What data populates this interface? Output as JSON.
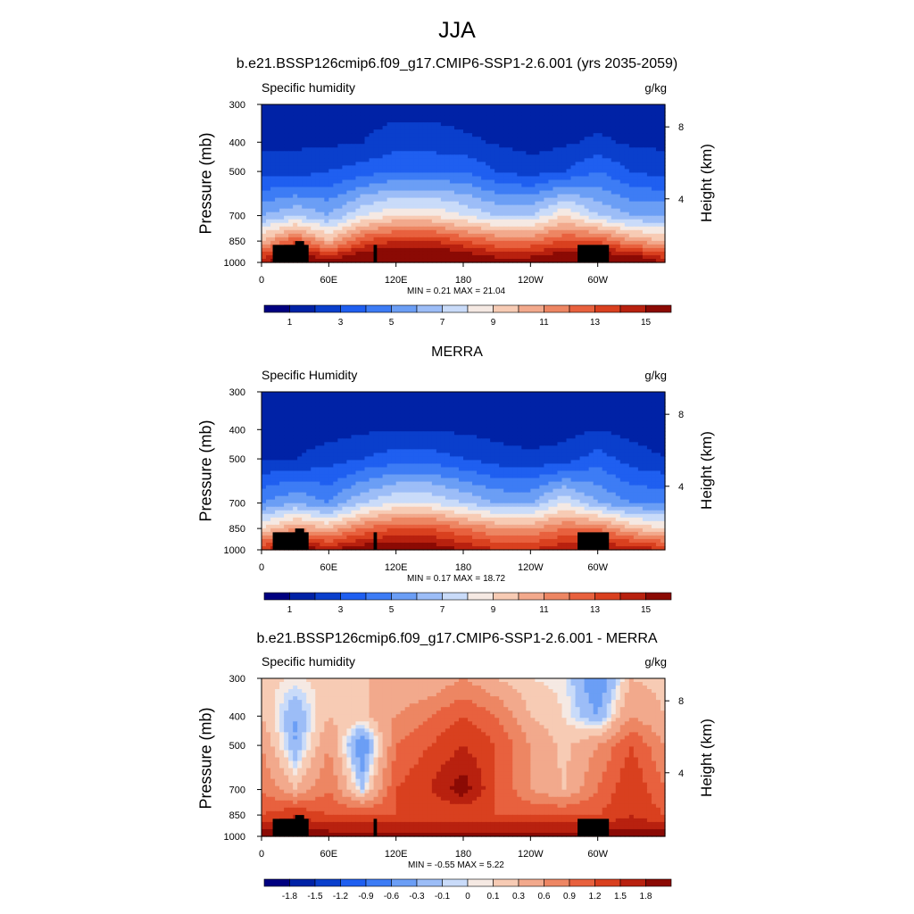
{
  "figure": {
    "title": "JJA"
  },
  "panels": [
    {
      "title": "b.e21.BSSP126cmip6.f09_g17.CMIP6-SSP1-2.6.001 (yrs 2035-2059)",
      "left_label": "Specific humidity",
      "right_label": "g/kg",
      "ylabel": "Pressure (mb)",
      "right_axis_label": "Height (km)",
      "yticks": [
        "300",
        "400",
        "500",
        "700",
        "850",
        "1000"
      ],
      "right_ticks": [
        "8",
        "4"
      ],
      "xticks": [
        "0",
        "60E",
        "120E",
        "180",
        "120W",
        "60W"
      ],
      "min_label": "MIN =",
      "min_value": "0.21",
      "max_label": "MAX =",
      "max_value": "21.04",
      "colorbar_labels": [
        "1",
        "3",
        "5",
        "7",
        "9",
        "11",
        "13",
        "15"
      ]
    },
    {
      "title": "MERRA",
      "left_label": "Specific Humidity",
      "right_label": "g/kg",
      "ylabel": "Pressure (mb)",
      "right_axis_label": "Height (km)",
      "yticks": [
        "300",
        "400",
        "500",
        "700",
        "850",
        "1000"
      ],
      "right_ticks": [
        "8",
        "4"
      ],
      "xticks": [
        "0",
        "60E",
        "120E",
        "180",
        "120W",
        "60W"
      ],
      "min_label": "MIN =",
      "min_value": "0.17",
      "max_label": "MAX =",
      "max_value": "18.72",
      "colorbar_labels": [
        "1",
        "3",
        "5",
        "7",
        "9",
        "11",
        "13",
        "15"
      ]
    },
    {
      "title": "b.e21.BSSP126cmip6.f09_g17.CMIP6-SSP1-2.6.001 - MERRA",
      "left_label": "Specific humidity",
      "right_label": "g/kg",
      "ylabel": "Pressure (mb)",
      "right_axis_label": "Height (km)",
      "yticks": [
        "300",
        "400",
        "500",
        "700",
        "850",
        "1000"
      ],
      "right_ticks": [
        "8",
        "4"
      ],
      "xticks": [
        "0",
        "60E",
        "120E",
        "180",
        "120W",
        "60W"
      ],
      "min_label": "MIN =",
      "min_value": "-0.55",
      "max_label": "MAX =",
      "max_value": "5.22",
      "colorbar_labels": [
        "-1.8",
        "-1.5",
        "-1.2",
        "-0.9",
        "-0.6",
        "-0.3",
        "-0.1",
        "0",
        "0.1",
        "0.3",
        "0.6",
        "0.9",
        "1.2",
        "1.5",
        "1.8"
      ]
    }
  ],
  "chart_data": [
    {
      "type": "heatmap",
      "title": "b.e21.BSSP126cmip6.f09_g17.CMIP6-SSP1-2.6.001 (yrs 2035-2059)",
      "variable": "Specific humidity",
      "units": "g/kg",
      "xlabel": "",
      "ylabel": "Pressure (mb)",
      "xlim": [
        0,
        360
      ],
      "ylim_pressure": [
        1000,
        300
      ],
      "y_scale": "log",
      "x_ticks": [
        0,
        60,
        120,
        180,
        240,
        300
      ],
      "y_ticks": [
        300,
        400,
        500,
        700,
        850,
        1000
      ],
      "right_axis": {
        "label": "Height (km)",
        "ticks": [
          8,
          4
        ]
      },
      "min": 0.21,
      "max": 21.04,
      "levels": [
        0,
        1,
        2,
        3,
        4,
        5,
        6,
        7,
        8,
        9,
        10,
        11,
        12,
        13,
        14,
        15,
        16
      ],
      "colors": [
        "#000080",
        "#0022a6",
        "#0a3fcc",
        "#1f5ff0",
        "#3d7cf5",
        "#6b9ef5",
        "#9cbdf7",
        "#c9dbf9",
        "#f5e9e3",
        "#f7cbb4",
        "#f2a98c",
        "#ed8663",
        "#e8613e",
        "#d9401f",
        "#b8210f",
        "#8b0a04"
      ],
      "sample_profile_lon": [
        0,
        30,
        60,
        90,
        120,
        150,
        180,
        210,
        240,
        270,
        300,
        330,
        360
      ],
      "sample_profile_p": [
        1000,
        850,
        700,
        500,
        400,
        300
      ],
      "sample_values": [
        [
          14,
          9,
          5,
          1.5,
          0.8,
          0.3
        ],
        [
          16,
          12,
          6,
          1.5,
          0.8,
          0.3
        ],
        [
          15,
          9,
          5,
          2,
          0.8,
          0.4
        ],
        [
          16,
          12,
          7,
          2.5,
          1,
          0.5
        ],
        [
          17,
          13,
          8,
          3,
          1.5,
          0.6
        ],
        [
          17,
          13,
          8,
          3,
          1.5,
          0.6
        ],
        [
          16,
          12,
          7,
          3,
          1.2,
          0.5
        ],
        [
          15,
          11,
          6,
          2,
          0.9,
          0.4
        ],
        [
          15,
          11,
          6,
          1.5,
          0.6,
          0.3
        ],
        [
          16,
          12,
          8,
          2,
          0.8,
          0.3
        ],
        [
          16,
          12,
          6,
          3,
          1.2,
          0.5
        ],
        [
          16,
          10,
          5,
          2,
          0.8,
          0.3
        ],
        [
          14,
          9,
          5,
          1.5,
          0.8,
          0.3
        ]
      ]
    },
    {
      "type": "heatmap",
      "title": "MERRA",
      "variable": "Specific Humidity",
      "units": "g/kg",
      "xlabel": "",
      "ylabel": "Pressure (mb)",
      "xlim": [
        0,
        360
      ],
      "ylim_pressure": [
        1000,
        300
      ],
      "y_scale": "log",
      "x_ticks": [
        0,
        60,
        120,
        180,
        240,
        300
      ],
      "y_ticks": [
        300,
        400,
        500,
        700,
        850,
        1000
      ],
      "right_axis": {
        "label": "Height (km)",
        "ticks": [
          8,
          4
        ]
      },
      "min": 0.17,
      "max": 18.72,
      "levels": [
        0,
        1,
        2,
        3,
        4,
        5,
        6,
        7,
        8,
        9,
        10,
        11,
        12,
        13,
        14,
        15,
        16
      ],
      "colors": [
        "#000080",
        "#0022a6",
        "#0a3fcc",
        "#1f5ff0",
        "#3d7cf5",
        "#6b9ef5",
        "#9cbdf7",
        "#c9dbf9",
        "#f5e9e3",
        "#f7cbb4",
        "#f2a98c",
        "#ed8663",
        "#e8613e",
        "#d9401f",
        "#b8210f",
        "#8b0a04"
      ],
      "sample_profile_lon": [
        0,
        30,
        60,
        90,
        120,
        150,
        180,
        210,
        240,
        270,
        300,
        330,
        360
      ],
      "sample_profile_p": [
        1000,
        850,
        700,
        500,
        400,
        300
      ],
      "sample_values": [
        [
          13,
          8,
          4,
          1,
          0.5,
          0.2
        ],
        [
          15,
          10,
          5,
          1,
          0.5,
          0.2
        ],
        [
          14,
          9,
          4,
          1.5,
          0.6,
          0.3
        ],
        [
          15,
          11,
          6,
          2,
          0.8,
          0.4
        ],
        [
          15,
          12,
          7,
          2.5,
          1,
          0.4
        ],
        [
          15,
          12,
          7,
          2.5,
          1,
          0.4
        ],
        [
          14,
          11,
          6,
          2,
          0.8,
          0.3
        ],
        [
          13,
          10,
          5,
          1.5,
          0.6,
          0.3
        ],
        [
          13,
          10,
          5,
          1.2,
          0.5,
          0.2
        ],
        [
          14,
          11,
          7,
          1.5,
          0.6,
          0.2
        ],
        [
          14,
          11,
          5,
          2.5,
          1,
          0.4
        ],
        [
          14,
          9,
          4,
          1.5,
          0.6,
          0.2
        ],
        [
          13,
          8,
          4,
          1,
          0.5,
          0.2
        ]
      ]
    },
    {
      "type": "heatmap",
      "title": "b.e21.BSSP126cmip6.f09_g17.CMIP6-SSP1-2.6.001 - MERRA",
      "variable": "Specific humidity",
      "units": "g/kg",
      "xlabel": "",
      "ylabel": "Pressure (mb)",
      "xlim": [
        0,
        360
      ],
      "ylim_pressure": [
        1000,
        300
      ],
      "y_scale": "log",
      "x_ticks": [
        0,
        60,
        120,
        180,
        240,
        300
      ],
      "y_ticks": [
        300,
        400,
        500,
        700,
        850,
        1000
      ],
      "right_axis": {
        "label": "Height (km)",
        "ticks": [
          8,
          4
        ]
      },
      "min": -0.55,
      "max": 5.22,
      "levels": [
        -1.8,
        -1.5,
        -1.2,
        -0.9,
        -0.6,
        -0.3,
        -0.1,
        0,
        0.1,
        0.3,
        0.6,
        0.9,
        1.2,
        1.5,
        1.8
      ],
      "colors": [
        "#000080",
        "#0022a6",
        "#0a3fcc",
        "#1f5ff0",
        "#3d7cf5",
        "#6b9ef5",
        "#9cbdf7",
        "#c9dbf9",
        "#f5e9e3",
        "#f7cbb4",
        "#f2a98c",
        "#ed8663",
        "#e8613e",
        "#d9401f",
        "#b8210f",
        "#8b0a04"
      ],
      "sample_profile_lon": [
        0,
        30,
        60,
        90,
        120,
        150,
        180,
        210,
        240,
        270,
        300,
        330,
        360
      ],
      "sample_profile_p": [
        1000,
        850,
        700,
        500,
        400,
        300
      ],
      "sample_values": [
        [
          2,
          1.2,
          0.9,
          0.6,
          0.3,
          0.2
        ],
        [
          2,
          1.5,
          0.3,
          -0.3,
          -0.3,
          0.05
        ],
        [
          2,
          1.2,
          0.9,
          0.6,
          0.3,
          0.2
        ],
        [
          2,
          1.2,
          -0.1,
          -0.6,
          0.2,
          0.3
        ],
        [
          2,
          1.2,
          1.2,
          0.9,
          0.6,
          0.3
        ],
        [
          2,
          1.2,
          1.5,
          1.2,
          0.9,
          0.3
        ],
        [
          2,
          1.2,
          2.0,
          1.5,
          1.2,
          0.6
        ],
        [
          2,
          1.2,
          1.2,
          1.2,
          0.9,
          0.3
        ],
        [
          2,
          1.2,
          0.6,
          0.6,
          0.3,
          0.1
        ],
        [
          2,
          1.2,
          0.3,
          0.2,
          0.1,
          0.05
        ],
        [
          2,
          1.2,
          0.9,
          0.6,
          -0.3,
          -0.6
        ],
        [
          2,
          1.5,
          1.5,
          1.2,
          0.6,
          0.3
        ],
        [
          2,
          1.2,
          0.9,
          0.6,
          0.3,
          0.2
        ]
      ]
    }
  ]
}
